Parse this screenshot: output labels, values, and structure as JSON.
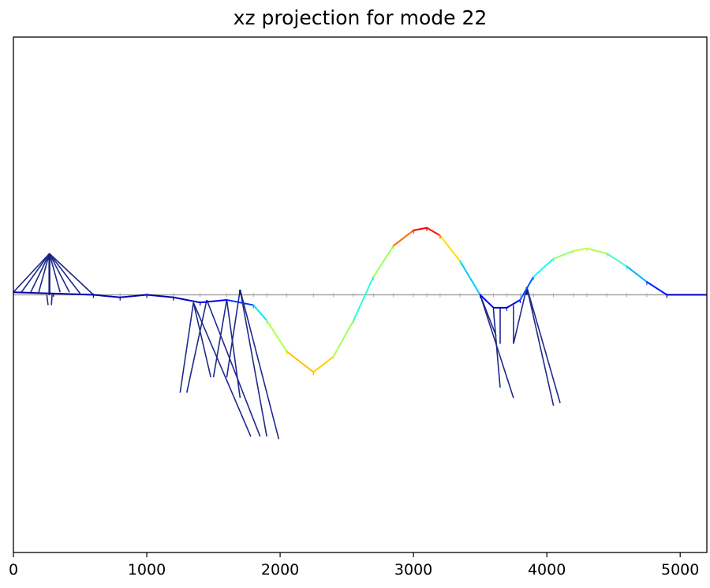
{
  "chart_data": {
    "type": "line",
    "title": "xz projection for mode 22",
    "xlabel": "",
    "ylabel": "",
    "xlim": [
      0,
      5200
    ],
    "ylim": [
      -1000,
      1000
    ],
    "xticks": [
      0,
      1000,
      2000,
      3000,
      4000,
      5000
    ],
    "yticks": [],
    "grid": false,
    "colormap": "jet",
    "colors": {
      "undeformed": "#a6a6a6",
      "cables": "#1f2a8c",
      "towers": "#141c78"
    },
    "series": [
      {
        "role": "undeformed",
        "x": [
          0,
          5200
        ],
        "y": [
          0,
          0
        ]
      },
      {
        "role": "deformed-deck",
        "x": [
          0,
          300,
          600,
          800,
          1000,
          1200,
          1400,
          1600,
          1800,
          1900,
          2050,
          2250,
          2400,
          2550,
          2700,
          2850,
          3000,
          3100,
          3200,
          3350,
          3500,
          3600,
          3700,
          3800,
          3900,
          4050,
          4200,
          4300,
          4450,
          4600,
          4750,
          4900,
          5200
        ],
        "y": [
          10,
          5,
          0,
          -10,
          0,
          -10,
          -30,
          -20,
          -40,
          -100,
          -220,
          -300,
          -240,
          -100,
          70,
          190,
          250,
          260,
          230,
          130,
          0,
          -50,
          -50,
          -20,
          70,
          140,
          170,
          180,
          160,
          110,
          50,
          0,
          0
        ],
        "amplitude": [
          0.05,
          0.05,
          0.05,
          0.05,
          0.05,
          0.05,
          0.1,
          0.1,
          0.25,
          0.45,
          0.65,
          0.72,
          0.62,
          0.45,
          0.38,
          0.68,
          0.86,
          0.9,
          0.82,
          0.5,
          0.15,
          0.08,
          0.1,
          0.12,
          0.3,
          0.48,
          0.56,
          0.58,
          0.5,
          0.38,
          0.22,
          0.08,
          0.05
        ]
      }
    ],
    "towers": [
      {
        "x": 270,
        "top": 160
      },
      {
        "x": 1700,
        "top": 20
      },
      {
        "x": 3850,
        "top": 30
      }
    ],
    "cables": [
      {
        "x1": 270,
        "y1": 160,
        "x2": 0,
        "y2": 10
      },
      {
        "x1": 270,
        "y1": 160,
        "x2": 60,
        "y2": 10
      },
      {
        "x1": 270,
        "y1": 160,
        "x2": 130,
        "y2": 10
      },
      {
        "x1": 270,
        "y1": 160,
        "x2": 190,
        "y2": 10
      },
      {
        "x1": 270,
        "y1": 160,
        "x2": 350,
        "y2": 10
      },
      {
        "x1": 270,
        "y1": 160,
        "x2": 420,
        "y2": 10
      },
      {
        "x1": 270,
        "y1": 160,
        "x2": 500,
        "y2": 5
      },
      {
        "x1": 270,
        "y1": 160,
        "x2": 600,
        "y2": 0
      },
      {
        "x1": 250,
        "y1": 0,
        "x2": 260,
        "y2": -40
      },
      {
        "x1": 290,
        "y1": 0,
        "x2": 285,
        "y2": -40
      },
      {
        "x1": 1350,
        "y1": -30,
        "x2": 1250,
        "y2": -380
      },
      {
        "x1": 1350,
        "y1": -30,
        "x2": 1480,
        "y2": -320
      },
      {
        "x1": 1350,
        "y1": -30,
        "x2": 1780,
        "y2": -550
      },
      {
        "x1": 1450,
        "y1": -20,
        "x2": 1300,
        "y2": -380
      },
      {
        "x1": 1450,
        "y1": -20,
        "x2": 1850,
        "y2": -550
      },
      {
        "x1": 1600,
        "y1": -20,
        "x2": 1500,
        "y2": -320
      },
      {
        "x1": 1600,
        "y1": -20,
        "x2": 1700,
        "y2": -400
      },
      {
        "x1": 1700,
        "y1": 20,
        "x2": 1600,
        "y2": -320
      },
      {
        "x1": 1700,
        "y1": 20,
        "x2": 1900,
        "y2": -550
      },
      {
        "x1": 1700,
        "y1": 20,
        "x2": 1990,
        "y2": -560
      },
      {
        "x1": 3500,
        "y1": 0,
        "x2": 3750,
        "y2": -400
      },
      {
        "x1": 3500,
        "y1": 0,
        "x2": 3620,
        "y2": -160
      },
      {
        "x1": 3600,
        "y1": -60,
        "x2": 3650,
        "y2": -360
      },
      {
        "x1": 3650,
        "y1": -50,
        "x2": 3650,
        "y2": -190
      },
      {
        "x1": 3750,
        "y1": -40,
        "x2": 3750,
        "y2": -190
      },
      {
        "x1": 3850,
        "y1": 30,
        "x2": 3750,
        "y2": -190
      },
      {
        "x1": 3850,
        "y1": 30,
        "x2": 4100,
        "y2": -420
      },
      {
        "x1": 3850,
        "y1": 30,
        "x2": 4050,
        "y2": -430
      }
    ]
  }
}
